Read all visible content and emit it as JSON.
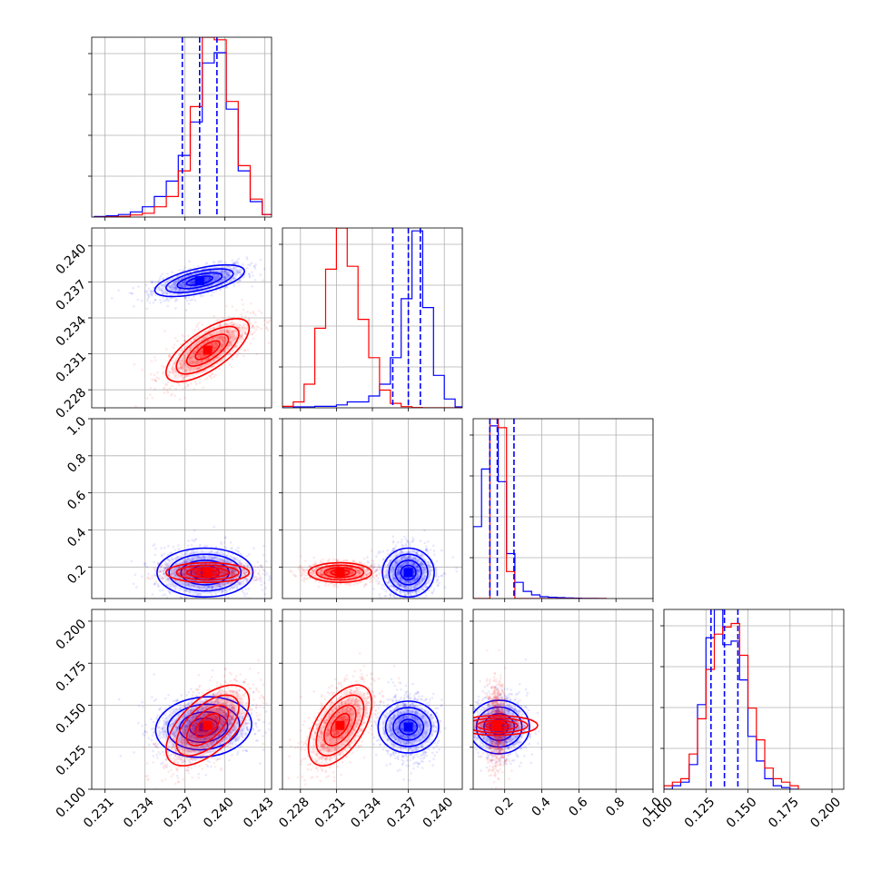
{
  "chart_data": {
    "type": "corner",
    "series": [
      {
        "name": "",
        "color": "#0000ff"
      },
      {
        "name": "",
        "color": "#ff0000"
      }
    ],
    "grid": true,
    "parameters": [
      {
        "range": [
          0.23,
          0.2435
        ],
        "ticks": [
          0.231,
          0.234,
          0.237,
          0.24,
          0.243
        ],
        "tick_labels": [
          "0.231",
          "0.234",
          "0.237",
          "0.240",
          "0.243"
        ]
      },
      {
        "range": [
          0.2265,
          0.2415
        ],
        "ticks": [
          0.228,
          0.231,
          0.234,
          0.237,
          0.24
        ],
        "tick_labels": [
          "0.228",
          "0.231",
          "0.234",
          "0.237",
          "0.240"
        ]
      },
      {
        "range": [
          0.03,
          1.0
        ],
        "ticks": [
          0.2,
          0.4,
          0.6,
          0.8,
          1.0
        ],
        "tick_labels": [
          "0.2",
          "0.4",
          "0.6",
          "0.8",
          "1.0"
        ]
      },
      {
        "range": [
          0.1,
          0.207
        ],
        "ticks": [
          0.1,
          0.125,
          0.15,
          0.175,
          0.2
        ],
        "tick_labels": [
          "0.100",
          "0.125",
          "0.150",
          "0.175",
          "0.200"
        ]
      }
    ],
    "left_tick_labels": [
      null,
      [
        "0.228",
        "0.231",
        "0.234",
        "0.237",
        "0.240"
      ],
      [
        "0.2",
        "0.4",
        "0.6",
        "0.8",
        "1.0"
      ],
      [
        "0.100",
        "0.125",
        "0.150",
        "0.175",
        "0.200"
      ]
    ],
    "quantiles_blue": [
      [
        0.2368,
        0.2381,
        0.2394
      ],
      [
        0.2357,
        0.237,
        0.238
      ],
      [
        0.12,
        0.16,
        0.25
      ],
      [
        0.128,
        0.136,
        0.144
      ]
    ],
    "hist_blue": [
      [
        [
          0.2302,
          0.002
        ],
        [
          0.2311,
          0.005
        ],
        [
          0.232,
          0.01
        ],
        [
          0.2329,
          0.02
        ],
        [
          0.2338,
          0.04
        ],
        [
          0.2347,
          0.08
        ],
        [
          0.2356,
          0.14
        ],
        [
          0.2365,
          0.24
        ],
        [
          0.2374,
          0.37
        ],
        [
          0.2383,
          0.6
        ],
        [
          0.2392,
          0.64
        ],
        [
          0.2401,
          0.42
        ],
        [
          0.241,
          0.18
        ],
        [
          0.2419,
          0.06
        ],
        [
          0.2428,
          0.01
        ]
      ],
      [
        [
          0.2265,
          0.0
        ],
        [
          0.2274,
          0.003
        ],
        [
          0.2283,
          0.003
        ],
        [
          0.2292,
          0.005
        ],
        [
          0.2301,
          0.005
        ],
        [
          0.231,
          0.01
        ],
        [
          0.2319,
          0.02
        ],
        [
          0.2328,
          0.02
        ],
        [
          0.2337,
          0.04
        ],
        [
          0.2346,
          0.08
        ],
        [
          0.2355,
          0.17
        ],
        [
          0.2364,
          0.37
        ],
        [
          0.2373,
          0.6
        ],
        [
          0.2382,
          0.34
        ],
        [
          0.2391,
          0.11
        ],
        [
          0.24,
          0.03
        ],
        [
          0.2409,
          0.003
        ]
      ],
      [
        [
          0.03,
          0.4
        ],
        [
          0.075,
          0.72
        ],
        [
          0.12,
          0.96
        ],
        [
          0.165,
          0.65
        ],
        [
          0.21,
          0.25
        ],
        [
          0.255,
          0.09
        ],
        [
          0.3,
          0.04
        ],
        [
          0.345,
          0.02
        ],
        [
          0.39,
          0.01
        ],
        [
          0.435,
          0.007
        ],
        [
          0.48,
          0.005
        ],
        [
          0.525,
          0.003
        ],
        [
          0.57,
          0.002
        ],
        [
          0.615,
          0.001
        ],
        [
          0.66,
          0.001
        ],
        [
          0.705,
          0.0
        ]
      ],
      [
        [
          0.1,
          0.0
        ],
        [
          0.105,
          0.01
        ],
        [
          0.11,
          0.02
        ],
        [
          0.115,
          0.07
        ],
        [
          0.12,
          0.24
        ],
        [
          0.125,
          0.43
        ],
        [
          0.13,
          0.51
        ],
        [
          0.135,
          0.41
        ],
        [
          0.14,
          0.42
        ],
        [
          0.145,
          0.31
        ],
        [
          0.15,
          0.15
        ],
        [
          0.155,
          0.08
        ],
        [
          0.16,
          0.03
        ],
        [
          0.165,
          0.01
        ],
        [
          0.17,
          0.005
        ],
        [
          0.175,
          0.0
        ]
      ]
    ],
    "hist_red": [
      [
        [
          0.2302,
          0.0
        ],
        [
          0.2311,
          0.001
        ],
        [
          0.232,
          0.003
        ],
        [
          0.2329,
          0.008
        ],
        [
          0.2338,
          0.015
        ],
        [
          0.2347,
          0.04
        ],
        [
          0.2356,
          0.08
        ],
        [
          0.2365,
          0.18
        ],
        [
          0.2374,
          0.43
        ],
        [
          0.2383,
          0.7
        ],
        [
          0.2392,
          0.69
        ],
        [
          0.2401,
          0.45
        ],
        [
          0.241,
          0.2
        ],
        [
          0.2419,
          0.07
        ],
        [
          0.2428,
          0.01
        ]
      ],
      [
        [
          0.2265,
          0.005
        ],
        [
          0.2274,
          0.02
        ],
        [
          0.2283,
          0.08
        ],
        [
          0.2292,
          0.27
        ],
        [
          0.2301,
          0.47
        ],
        [
          0.231,
          0.61
        ],
        [
          0.2319,
          0.48
        ],
        [
          0.2328,
          0.3
        ],
        [
          0.2337,
          0.17
        ],
        [
          0.2346,
          0.06
        ],
        [
          0.2355,
          0.015
        ],
        [
          0.2364,
          0.004
        ],
        [
          0.2373,
          0.001
        ],
        [
          0.2382,
          0.0
        ],
        [
          0.2391,
          0.0
        ],
        [
          0.24,
          0.0
        ],
        [
          0.2409,
          0.0
        ]
      ],
      [
        [
          0.03,
          0.0
        ],
        [
          0.075,
          0.0
        ],
        [
          0.12,
          1.0
        ],
        [
          0.165,
          0.95
        ],
        [
          0.21,
          0.15
        ],
        [
          0.255,
          0.0
        ],
        [
          0.3,
          0.0
        ],
        [
          0.345,
          0.0
        ],
        [
          0.39,
          0.0
        ],
        [
          0.435,
          0.0
        ],
        [
          0.48,
          0.0
        ],
        [
          0.525,
          0.0
        ],
        [
          0.57,
          0.0
        ],
        [
          0.615,
          0.0
        ],
        [
          0.66,
          0.0
        ],
        [
          0.705,
          0.0
        ]
      ],
      [
        [
          0.1,
          0.01
        ],
        [
          0.105,
          0.02
        ],
        [
          0.11,
          0.03
        ],
        [
          0.115,
          0.1
        ],
        [
          0.12,
          0.2
        ],
        [
          0.125,
          0.34
        ],
        [
          0.13,
          0.44
        ],
        [
          0.135,
          0.46
        ],
        [
          0.14,
          0.47
        ],
        [
          0.145,
          0.38
        ],
        [
          0.15,
          0.23
        ],
        [
          0.155,
          0.14
        ],
        [
          0.16,
          0.06
        ],
        [
          0.165,
          0.03
        ],
        [
          0.17,
          0.02
        ],
        [
          0.175,
          0.01
        ]
      ]
    ],
    "clouds": {
      "blue": [
        {
          "x": 0,
          "y": 1,
          "cx": 0.2381,
          "cy": 0.2371,
          "sx": 0.0014,
          "sy": 0.00055,
          "rho": 0.6
        },
        {
          "x": 0,
          "y": 2,
          "cx": 0.2385,
          "cy": 0.17,
          "sx": 0.0015,
          "sy": 0.055,
          "rho": 0.0
        },
        {
          "x": 1,
          "y": 2,
          "cx": 0.237,
          "cy": 0.17,
          "sx": 0.0009,
          "sy": 0.055,
          "rho": 0.0
        },
        {
          "x": 0,
          "y": 3,
          "cx": 0.2384,
          "cy": 0.137,
          "sx": 0.0015,
          "sy": 0.0075,
          "rho": 0.1
        },
        {
          "x": 1,
          "y": 3,
          "cx": 0.237,
          "cy": 0.137,
          "sx": 0.0009,
          "sy": 0.0075,
          "rho": 0.0
        },
        {
          "x": 2,
          "y": 3,
          "cx": 0.17,
          "cy": 0.137,
          "sx": 0.06,
          "sy": 0.0075,
          "rho": 0.0
        }
      ],
      "red": [
        {
          "x": 0,
          "y": 1,
          "cx": 0.2387,
          "cy": 0.2313,
          "sx": 0.0013,
          "sy": 0.0011,
          "rho": 0.7
        },
        {
          "x": 0,
          "y": 2,
          "cx": 0.2387,
          "cy": 0.17,
          "sx": 0.0013,
          "sy": 0.022,
          "rho": 0.0
        },
        {
          "x": 1,
          "y": 2,
          "cx": 0.2313,
          "cy": 0.17,
          "sx": 0.0011,
          "sy": 0.022,
          "rho": 0.0
        },
        {
          "x": 0,
          "y": 3,
          "cx": 0.2387,
          "cy": 0.138,
          "sx": 0.0013,
          "sy": 0.01,
          "rho": 0.6
        },
        {
          "x": 1,
          "y": 3,
          "cx": 0.2313,
          "cy": 0.138,
          "sx": 0.0011,
          "sy": 0.01,
          "rho": 0.55
        },
        {
          "x": 2,
          "y": 3,
          "cx": 0.16,
          "cy": 0.138,
          "sx": 0.022,
          "sy": 0.01,
          "rho": 0.0
        }
      ]
    }
  }
}
